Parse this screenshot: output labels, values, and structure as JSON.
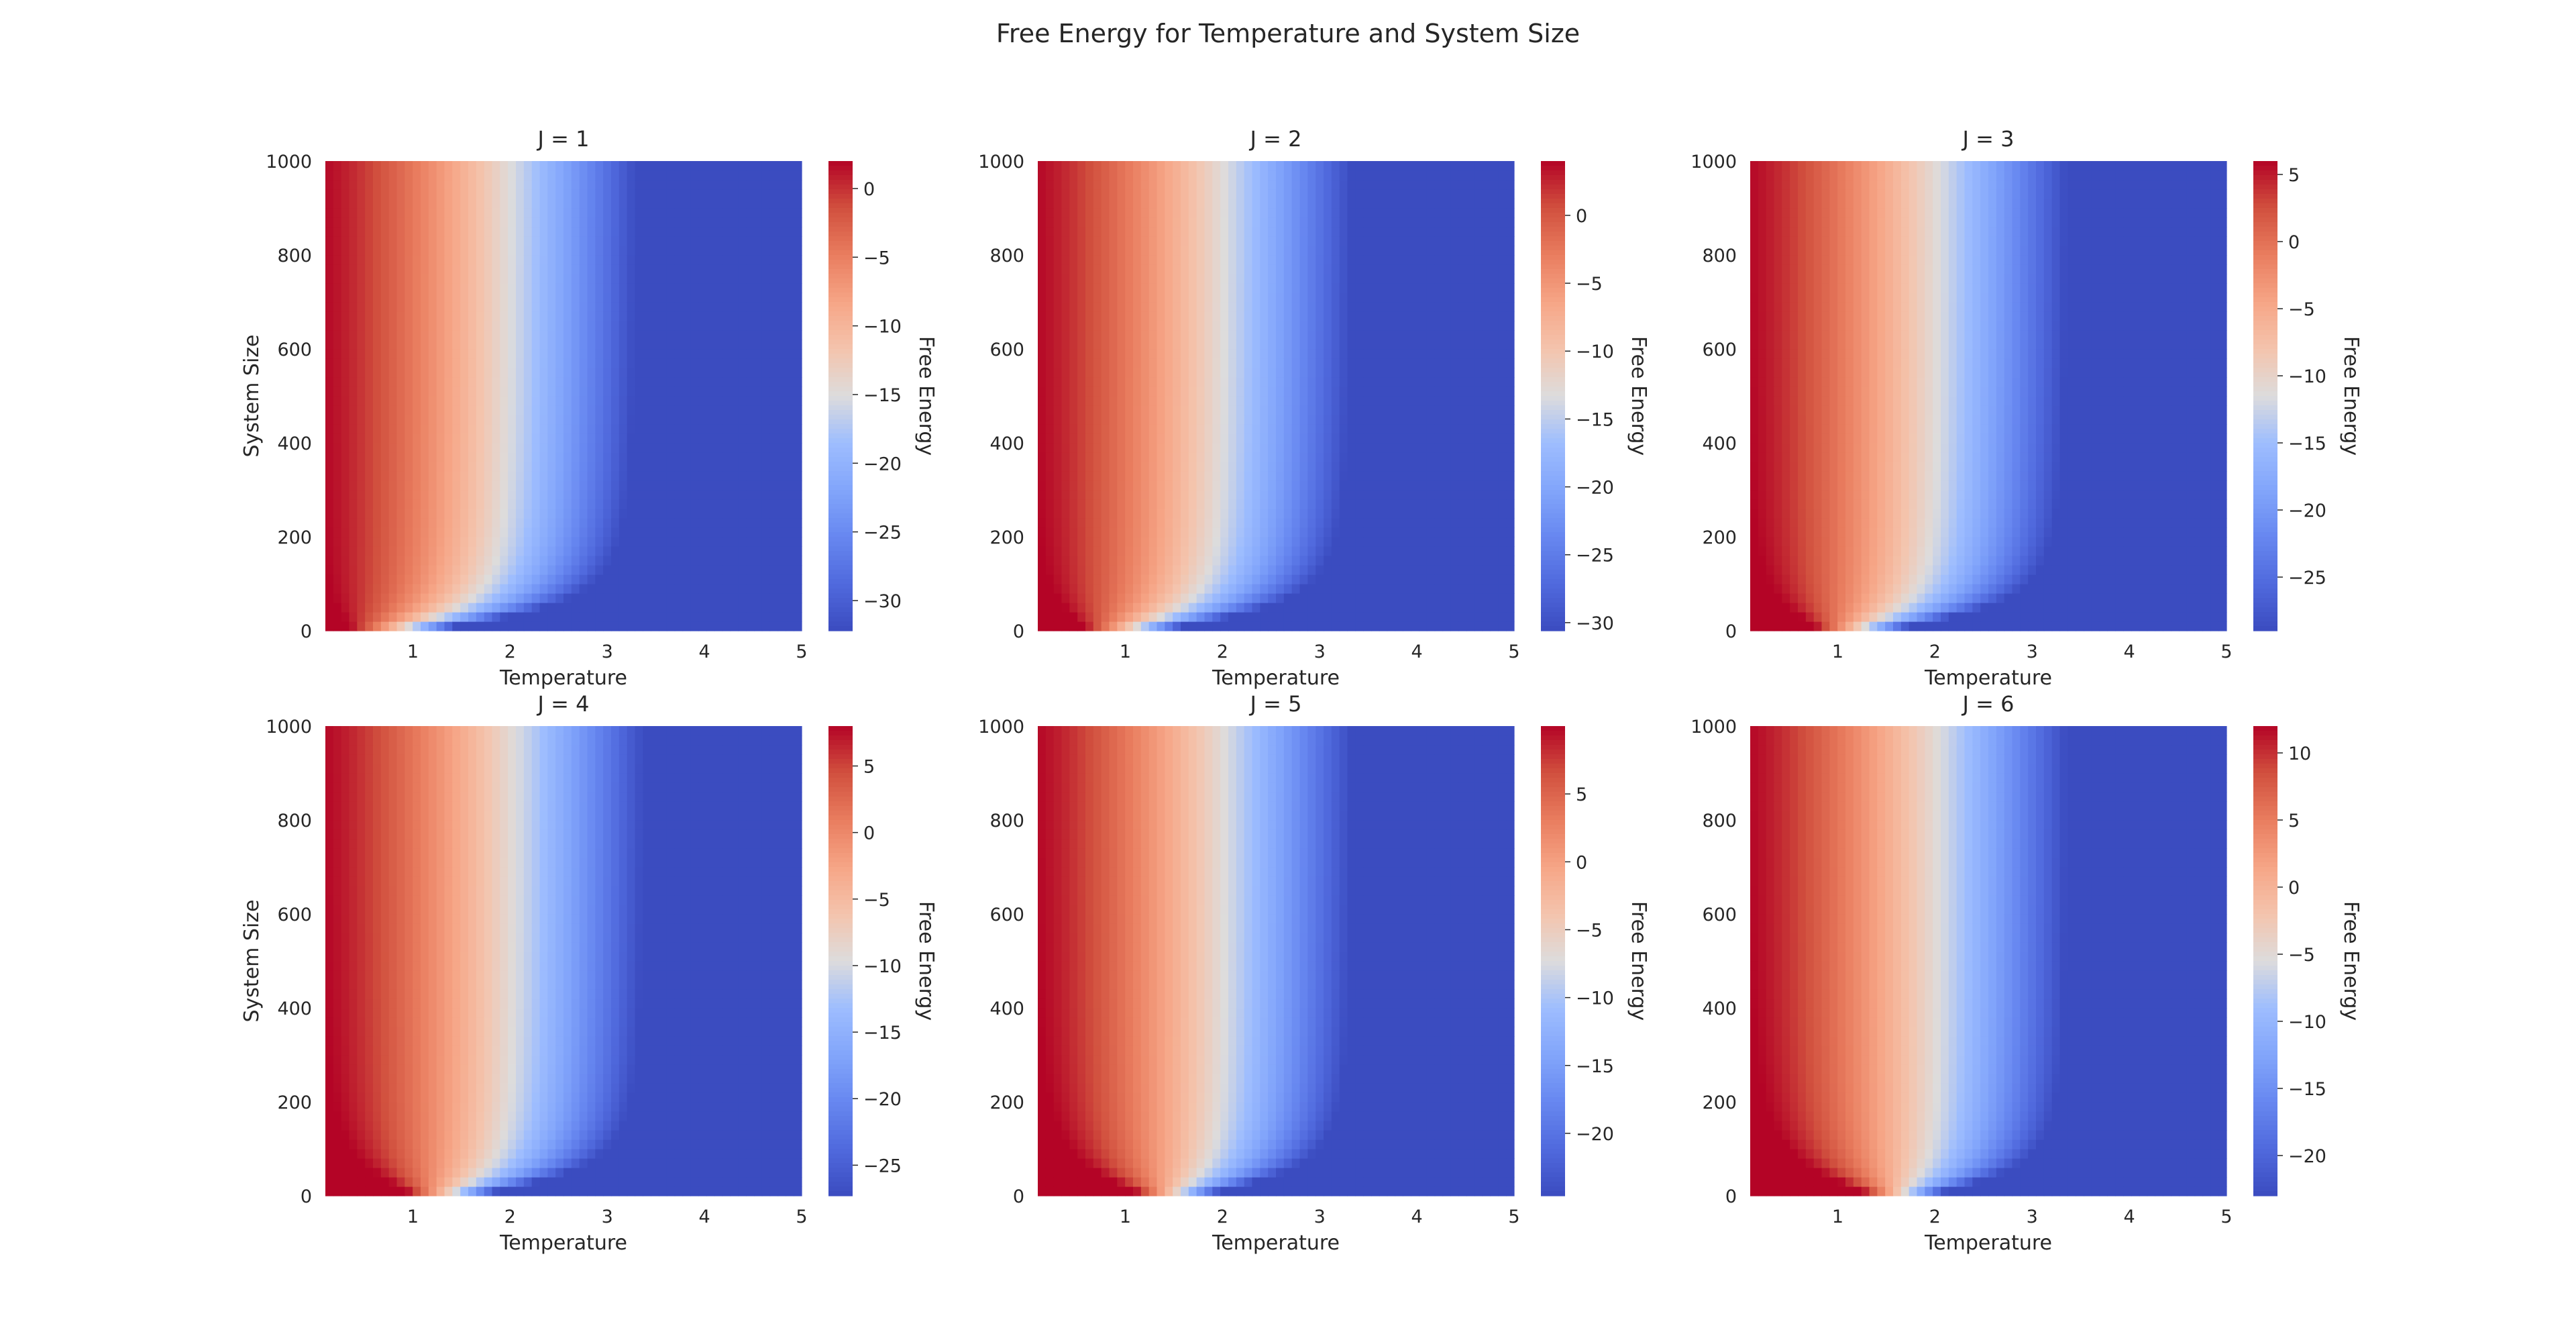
{
  "title": "Free Energy for Temperature and System Size",
  "colormap": {
    "name": "coolwarm",
    "low": "#3b4cc0",
    "mid": "#dddcdc",
    "high": "#b40426"
  },
  "chart_data": [
    {
      "type": "heatmap",
      "title": "J = 1",
      "xlabel": "Temperature",
      "ylabel": "System Size",
      "x_ticks": [
        "1",
        "2",
        "3",
        "4",
        "5"
      ],
      "y_ticks": [
        "0",
        "200",
        "400",
        "600",
        "800",
        "1000"
      ],
      "xlim": [
        0.1,
        5
      ],
      "ylim": [
        0,
        1000
      ],
      "colorbar_label": "Free Energy",
      "colorbar_ticks": [
        "0",
        "−5",
        "−10",
        "−15",
        "−20",
        "−25",
        "−30"
      ],
      "vmin": -32.2,
      "vmax": 2,
      "J": 1
    },
    {
      "type": "heatmap",
      "title": "J = 2",
      "xlabel": "Temperature",
      "ylabel": "",
      "x_ticks": [
        "1",
        "2",
        "3",
        "4",
        "5"
      ],
      "y_ticks": [
        "0",
        "200",
        "400",
        "600",
        "800",
        "1000"
      ],
      "xlim": [
        0.1,
        5
      ],
      "ylim": [
        0,
        1000
      ],
      "colorbar_label": "Free Energy",
      "colorbar_ticks": [
        "0",
        "−5",
        "−10",
        "−15",
        "−20",
        "−25",
        "−30"
      ],
      "vmin": -30.6,
      "vmax": 4,
      "J": 2
    },
    {
      "type": "heatmap",
      "title": "J = 3",
      "xlabel": "Temperature",
      "ylabel": "",
      "x_ticks": [
        "1",
        "2",
        "3",
        "4",
        "5"
      ],
      "y_ticks": [
        "0",
        "200",
        "400",
        "600",
        "800",
        "1000"
      ],
      "xlim": [
        0.1,
        5
      ],
      "ylim": [
        0,
        1000
      ],
      "colorbar_label": "Free Energy",
      "colorbar_ticks": [
        "5",
        "0",
        "−5",
        "−10",
        "−15",
        "−20",
        "−25"
      ],
      "vmin": -29,
      "vmax": 6,
      "J": 3
    },
    {
      "type": "heatmap",
      "title": "J = 4",
      "xlabel": "Temperature",
      "ylabel": "System Size",
      "x_ticks": [
        "1",
        "2",
        "3",
        "4",
        "5"
      ],
      "y_ticks": [
        "0",
        "200",
        "400",
        "600",
        "800",
        "1000"
      ],
      "xlim": [
        0.1,
        5
      ],
      "ylim": [
        0,
        1000
      ],
      "colorbar_label": "Free Energy",
      "colorbar_ticks": [
        "5",
        "0",
        "−5",
        "−10",
        "−15",
        "−20",
        "−25"
      ],
      "vmin": -27.3,
      "vmax": 8,
      "J": 4
    },
    {
      "type": "heatmap",
      "title": "J = 5",
      "xlabel": "Temperature",
      "ylabel": "",
      "x_ticks": [
        "1",
        "2",
        "3",
        "4",
        "5"
      ],
      "y_ticks": [
        "0",
        "200",
        "400",
        "600",
        "800",
        "1000"
      ],
      "xlim": [
        0.1,
        5
      ],
      "ylim": [
        0,
        1000
      ],
      "colorbar_label": "Free Energy",
      "colorbar_ticks": [
        "5",
        "0",
        "−5",
        "−10",
        "−15",
        "−20"
      ],
      "vmin": -24.6,
      "vmax": 10,
      "J": 5
    },
    {
      "type": "heatmap",
      "title": "J = 6",
      "xlabel": "Temperature",
      "ylabel": "",
      "x_ticks": [
        "1",
        "2",
        "3",
        "4",
        "5"
      ],
      "y_ticks": [
        "0",
        "200",
        "400",
        "600",
        "800",
        "1000"
      ],
      "xlim": [
        0.1,
        5
      ],
      "ylim": [
        0,
        1000
      ],
      "colorbar_label": "Free Energy",
      "colorbar_ticks": [
        "10",
        "5",
        "0",
        "−5",
        "−10",
        "−15",
        "−20"
      ],
      "vmin": -23,
      "vmax": 12,
      "J": 6
    }
  ]
}
